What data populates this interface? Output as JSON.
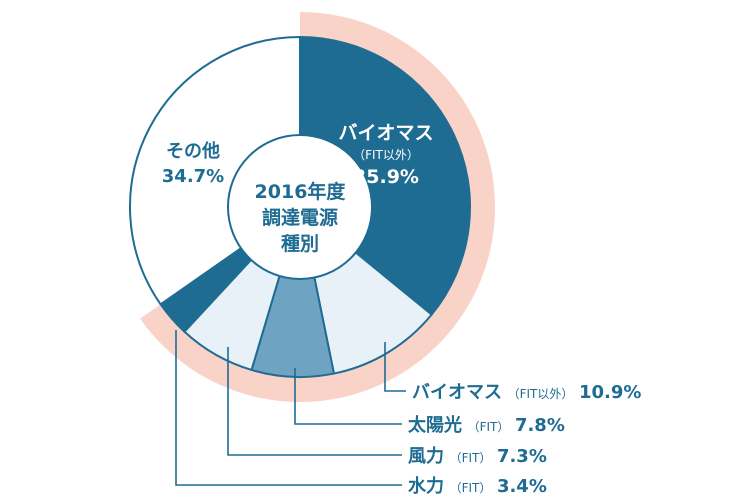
{
  "chart_data": {
    "type": "pie",
    "style": "donut",
    "center_label": [
      "2016年度",
      "調達電源",
      "種別"
    ],
    "slices": [
      {
        "label": "バイオマス",
        "sub": "（FIT以外）",
        "value": 35.9,
        "value_text": "35.9%",
        "color": "#1f6c93"
      },
      {
        "label": "バイオマス",
        "sub": "（FIT以外）",
        "value": 10.9,
        "value_text": "10.9%",
        "color": "#e8f0f8"
      },
      {
        "label": "太陽光",
        "sub": "（FIT）",
        "value": 7.8,
        "value_text": "7.8%",
        "color": "#6fa3c2"
      },
      {
        "label": "風力",
        "sub": "（FIT）",
        "value": 7.3,
        "value_text": "7.3%",
        "color": "#e8f0f8"
      },
      {
        "label": "水力",
        "sub": "（FIT）",
        "value": 3.4,
        "value_text": "3.4%",
        "color": "#1f6c93"
      },
      {
        "label": "その他",
        "sub": "",
        "value": 34.7,
        "value_text": "34.7%",
        "color": "#ffffff"
      }
    ],
    "highlight_ring": {
      "covers": "バイオマス + FIT",
      "color": "#f9d3c8"
    }
  },
  "colors": {
    "outline": "#1f6c93",
    "text": "#1f6c93",
    "text_on_dark": "#ffffff"
  }
}
